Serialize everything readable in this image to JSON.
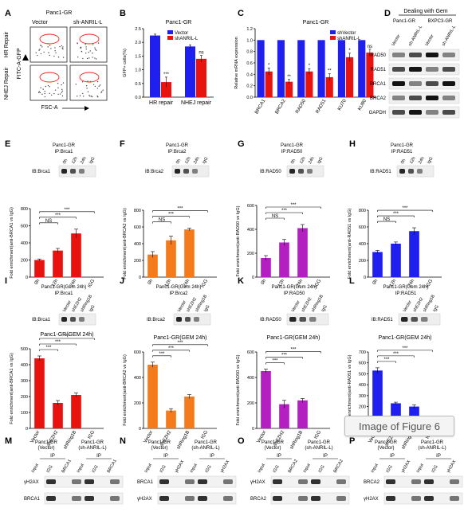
{
  "caption_badge": "Image of Figure 6",
  "panel_letters": [
    "A",
    "B",
    "C",
    "D",
    "E",
    "F",
    "G",
    "H",
    "I",
    "J",
    "K",
    "L",
    "M",
    "N",
    "O",
    "P"
  ],
  "panelA": {
    "title": "Panc1-GR",
    "col_labels": [
      "Vector",
      "sh-ANRIL-L"
    ],
    "row_labels": [
      "HR Repair",
      "NHEJ Repair"
    ],
    "y_axis": "FITC-A-GFP",
    "x_axis": "FSC-A"
  },
  "blotD": {
    "group_labels": [
      "Dealing with Gem",
      "Panc1-GR",
      "BXPC3-GR"
    ],
    "lane_labels": [
      "Vector",
      "sh-ANRIL-L",
      "Vector",
      "sh-ANRIL-L"
    ],
    "rows": [
      "RAD50",
      "RAD51",
      "BRCA1",
      "BRCA2",
      "GAPDH"
    ]
  },
  "blots_EH": [
    {
      "title": "Panc1-GR",
      "ip": "IP:Brca1",
      "ib": "IB:Brca1",
      "lanes": [
        "0h",
        "12h",
        "24h",
        "IgG"
      ]
    },
    {
      "title": "Panc1-GR",
      "ip": "IP:Brca2",
      "ib": "IB:Brca2",
      "lanes": [
        "0h",
        "12h",
        "24h",
        "IgG"
      ]
    },
    {
      "title": "Panc1-GR",
      "ip": "IP:RAD50",
      "ib": "IB:RAD50",
      "lanes": [
        "0h",
        "12h",
        "24h",
        "IgG"
      ]
    },
    {
      "title": "Panc1-GR",
      "ip": "IP:RAD51",
      "ib": "IB:RAD51",
      "lanes": [
        "0h",
        "12h",
        "24h",
        "IgG"
      ]
    }
  ],
  "blots_IL": [
    {
      "title": "Panc1-GR(Gem 24h)",
      "ip": "IP:Brca1",
      "ib": "IB:Brca1",
      "lanes": [
        "Vector",
        "shEZH2",
        "shRing1B",
        "IgG"
      ]
    },
    {
      "title": "Panc1-GR(Gem 24h)",
      "ip": "IP:Brca2",
      "ib": "IB:Brca2",
      "lanes": [
        "Vector",
        "shEZH2",
        "shRing1B",
        "IgG"
      ]
    },
    {
      "title": "Panc1-GR(Gem 24h)",
      "ip": "IP:RAD50",
      "ib": "IB:RAD50",
      "lanes": [
        "Vector",
        "shEZH2",
        "shRing1B",
        "IgG"
      ]
    },
    {
      "title": "Panc1-GR(Gem 24h)",
      "ip": "IP:RAD51",
      "ib": "IB:RAD51",
      "lanes": [
        "Vector",
        "shEZH2",
        "shRing1B",
        "IgG"
      ]
    }
  ],
  "blots_MP": [
    {
      "groups": [
        "Panc1-GR",
        "(Vector)",
        "Panc1-GR",
        "(sh-ANRIL-L)"
      ],
      "ip": "IP",
      "lanes": [
        "Input",
        "IGG",
        "BRCA1",
        "Input",
        "IGG",
        "BRCA1"
      ],
      "rows": [
        "γH2AX",
        "BRCA1"
      ]
    },
    {
      "groups": [
        "Panc1-GR",
        "(Vector)",
        "Panc1-GR",
        "(sh-ANRIL-L)"
      ],
      "ip": "IP",
      "lanes": [
        "Input",
        "IGG",
        "γH2AX",
        "Input",
        "IGG",
        "γH2AX"
      ],
      "rows": [
        "BRCA1",
        "γH2AX"
      ]
    },
    {
      "groups": [
        "Panc1-GR",
        "(Vector)",
        "Panc1-GR",
        "(sh-ANRIL-L)"
      ],
      "ip": "IP",
      "lanes": [
        "Input",
        "IGG",
        "BRCA2",
        "Input",
        "IGG",
        "BRCA2"
      ],
      "rows": [
        "γH2AX",
        "BRCA2"
      ]
    },
    {
      "groups": [
        "Panc1-GR",
        "(Vector)",
        "Panc1-GR",
        "(sh-ANRIL-L)"
      ],
      "ip": "IP",
      "lanes": [
        "Input",
        "IGG",
        "γH2AX",
        "Input",
        "IGG",
        "γH2AX"
      ],
      "rows": [
        "BRCA2",
        "γH2AX"
      ]
    }
  ],
  "colors": {
    "blue": "#1f1ff0",
    "red": "#e8120f",
    "orange": "#f47a1a",
    "purple": "#b31fc0"
  },
  "chart_data": [
    {
      "panel": "B",
      "type": "bar",
      "title": "Panc1-GR",
      "ylabel": "GFP+ cells(%)",
      "categories": [
        "HR repair",
        "NHEJ repair"
      ],
      "series": [
        {
          "name": "Vector",
          "values": [
            2.25,
            1.85
          ],
          "errors": [
            0.05,
            0.06
          ]
        },
        {
          "name": "shANRIL-L",
          "values": [
            0.55,
            1.4
          ],
          "errors": [
            0.18,
            0.12
          ]
        }
      ],
      "ylim": [
        0,
        2.5
      ],
      "yticks": [
        "0.0",
        "0.5",
        "1.0",
        "1.5",
        "2.0",
        "2.5"
      ],
      "annotations": [
        "***",
        "ns"
      ],
      "legend": "top-right"
    },
    {
      "panel": "C",
      "type": "bar",
      "title": "Panc1-GR",
      "ylabel": "Relative mRNA expression",
      "categories": [
        "BRCA1",
        "BRCA2",
        "RAD50",
        "RAD51",
        "KU70",
        "KU80"
      ],
      "series": [
        {
          "name": "shVector",
          "values": [
            1,
            1,
            1,
            1,
            1,
            1
          ]
        },
        {
          "name": "shANRIL-L",
          "values": [
            0.45,
            0.27,
            0.45,
            0.35,
            0.7,
            0.78
          ],
          "errors": [
            0.06,
            0.04,
            0.05,
            0.06,
            0.07,
            0.06
          ]
        }
      ],
      "ylim": [
        0,
        1.2
      ],
      "yticks": [
        "0.0",
        "0.2",
        "0.4",
        "0.6",
        "0.8",
        "1.0",
        "1.2"
      ],
      "annotations": [
        "*",
        "**",
        "*",
        "**",
        "*",
        "ns"
      ],
      "legend": "top-right"
    },
    {
      "panel": "E",
      "type": "bar",
      "color": "red",
      "ylabel": "Fold enrichment(anti-BRCA1 vs IgG)",
      "categories": [
        "0h",
        "12h",
        "24h",
        "IGG"
      ],
      "values": [
        200,
        310,
        510,
        0
      ],
      "errors": [
        12,
        25,
        50,
        0
      ],
      "ylim": [
        0,
        800
      ],
      "yticks": [
        "0",
        "200",
        "400",
        "600",
        "800"
      ],
      "sig": [
        "NS",
        "***",
        "***"
      ]
    },
    {
      "panel": "F",
      "type": "bar",
      "color": "orange",
      "ylabel": "Fold enrichment(anti-BRCA2 vs IgG)",
      "categories": [
        "0h",
        "12h",
        "24h",
        "IGG"
      ],
      "values": [
        270,
        440,
        570,
        0
      ],
      "errors": [
        35,
        50,
        15,
        0
      ],
      "ylim": [
        0,
        800
      ],
      "yticks": [
        "0",
        "200",
        "400",
        "600",
        "800"
      ],
      "sig": [
        "NS",
        "***",
        "***"
      ]
    },
    {
      "panel": "G",
      "type": "bar",
      "color": "purple",
      "ylabel": "Fold enrichment(anti-RAD50 vs IgG)",
      "categories": [
        "0h",
        "12h",
        "24h",
        "IGG"
      ],
      "values": [
        160,
        290,
        410,
        0
      ],
      "errors": [
        20,
        25,
        30,
        0
      ],
      "ylim": [
        0,
        600
      ],
      "yticks": [
        "0",
        "200",
        "400",
        "600"
      ],
      "sig": [
        "NS",
        "***",
        "***"
      ]
    },
    {
      "panel": "H",
      "type": "bar",
      "color": "blue",
      "ylabel": "Fold enrichment(anti-RAD51 vs IgG)",
      "categories": [
        "0h",
        "12h",
        "24h",
        "IGG"
      ],
      "values": [
        300,
        400,
        550,
        0
      ],
      "errors": [
        20,
        20,
        40,
        0
      ],
      "ylim": [
        0,
        800
      ],
      "yticks": [
        "0",
        "200",
        "400",
        "600",
        "800"
      ],
      "sig": [
        "NS",
        "***",
        "***"
      ]
    },
    {
      "panel": "I",
      "type": "bar",
      "color": "red",
      "title": "Panc1-GR(GEM 24h)",
      "ylabel": "Fold enrichment(anti-BRCA1 vs IgG)",
      "categories": [
        "Vector",
        "shEZH2",
        "shRing1B",
        "IGG"
      ],
      "values": [
        440,
        160,
        210,
        0
      ],
      "errors": [
        15,
        15,
        12,
        0
      ],
      "ylim": [
        0,
        500
      ],
      "yticks": [
        "0",
        "100",
        "200",
        "300",
        "400",
        "500"
      ],
      "sig": [
        "***",
        "***",
        "***"
      ]
    },
    {
      "panel": "J",
      "type": "bar",
      "color": "orange",
      "title": "Panc1-GR(GEM 24h)",
      "ylabel": "Fold enrichment(anti-BRCA2 vs IgG)",
      "categories": [
        "Vector",
        "shEZH2",
        "shRing1B",
        "IGG"
      ],
      "values": [
        500,
        140,
        250,
        0
      ],
      "errors": [
        20,
        15,
        15,
        0
      ],
      "ylim": [
        0,
        600
      ],
      "yticks": [
        "0",
        "200",
        "400",
        "600"
      ],
      "sig": [
        "***",
        "***",
        "***"
      ]
    },
    {
      "panel": "K",
      "type": "bar",
      "color": "purple",
      "title": "Panc1-GR(GEM 24h)",
      "ylabel": "Fold enrichment(anti-RAD50 vs IgG)",
      "categories": [
        "Vector",
        "shEZH2",
        "shRing1B",
        "IGG"
      ],
      "values": [
        450,
        190,
        220,
        0
      ],
      "errors": [
        15,
        30,
        15,
        0
      ],
      "ylim": [
        0,
        600
      ],
      "yticks": [
        "0",
        "200",
        "400",
        "600"
      ],
      "sig": [
        "***",
        "***",
        "***"
      ]
    },
    {
      "panel": "L",
      "type": "bar",
      "color": "blue",
      "title": "Panc1-GR(GEM 24h)",
      "ylabel": "Fold enrichment(anti-RAD51 vs IgG)",
      "categories": [
        "Vector",
        "shEZH2",
        "shRing1B",
        "IGG"
      ],
      "values": [
        530,
        230,
        200,
        0
      ],
      "errors": [
        25,
        10,
        15,
        0
      ],
      "ylim": [
        0,
        700
      ],
      "yticks": [
        "0",
        "100",
        "200",
        "300",
        "400",
        "500",
        "600",
        "700"
      ],
      "sig": [
        "***",
        "***",
        "***"
      ]
    }
  ]
}
